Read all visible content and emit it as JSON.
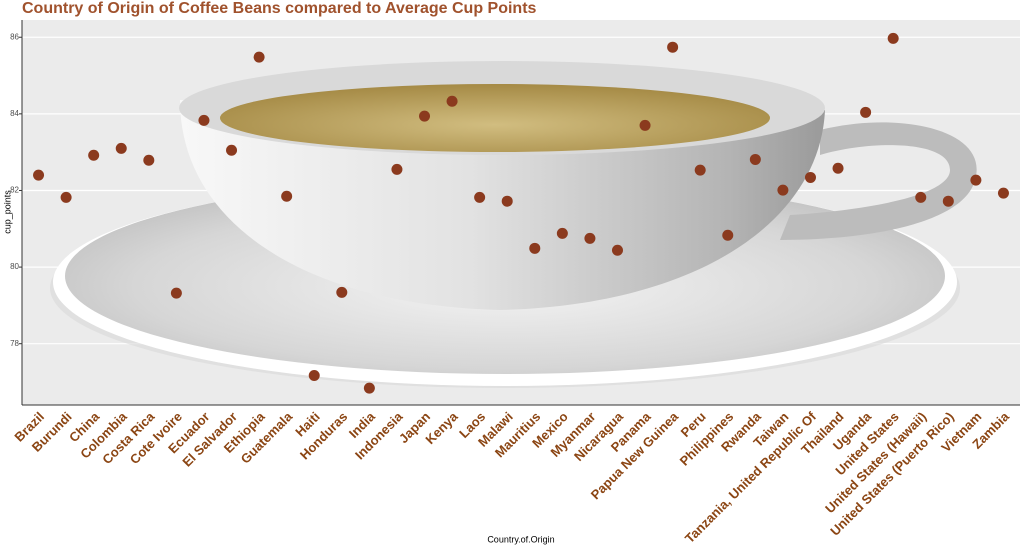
{
  "chart_data": {
    "type": "scatter",
    "title": "Country of Origin of Coffee Beans compared to Average Cup Points",
    "xlabel": "Country.of.Origin",
    "ylabel": "cup_points",
    "categories": [
      "Brazil",
      "Burundi",
      "China",
      "Colombia",
      "Costa Rica",
      "Cote Ivoire",
      "Ecuador",
      "El Salvador",
      "Ethiopia",
      "Guatemala",
      "Haiti",
      "Honduras",
      "India",
      "Indonesia",
      "Japan",
      "Kenya",
      "Laos",
      "Malawi",
      "Mauritius",
      "Mexico",
      "Myanmar",
      "Nicaragua",
      "Panama",
      "Papua New Guinea",
      "Peru",
      "Philippines",
      "Rwanda",
      "Taiwan",
      "Tanzania, United Republic Of",
      "Thailand",
      "Uganda",
      "United States",
      "United States (Hawaii)",
      "United States (Puerto Rico)",
      "Vietnam",
      "Zambia"
    ],
    "values": [
      82.4,
      81.82,
      82.92,
      83.1,
      82.79,
      79.32,
      83.83,
      83.05,
      85.48,
      81.85,
      77.17,
      79.34,
      76.84,
      82.55,
      83.94,
      84.33,
      81.82,
      81.72,
      80.49,
      80.88,
      80.75,
      80.44,
      83.7,
      85.74,
      82.53,
      80.83,
      82.81,
      82.01,
      82.34,
      82.58,
      84.04,
      85.97,
      81.82,
      81.72,
      82.27,
      81.93
    ],
    "color": "#8B3A1E",
    "ylim": [
      76.4,
      86.45
    ],
    "yticks": [
      78,
      80,
      82,
      84,
      86
    ],
    "grid": true
  }
}
